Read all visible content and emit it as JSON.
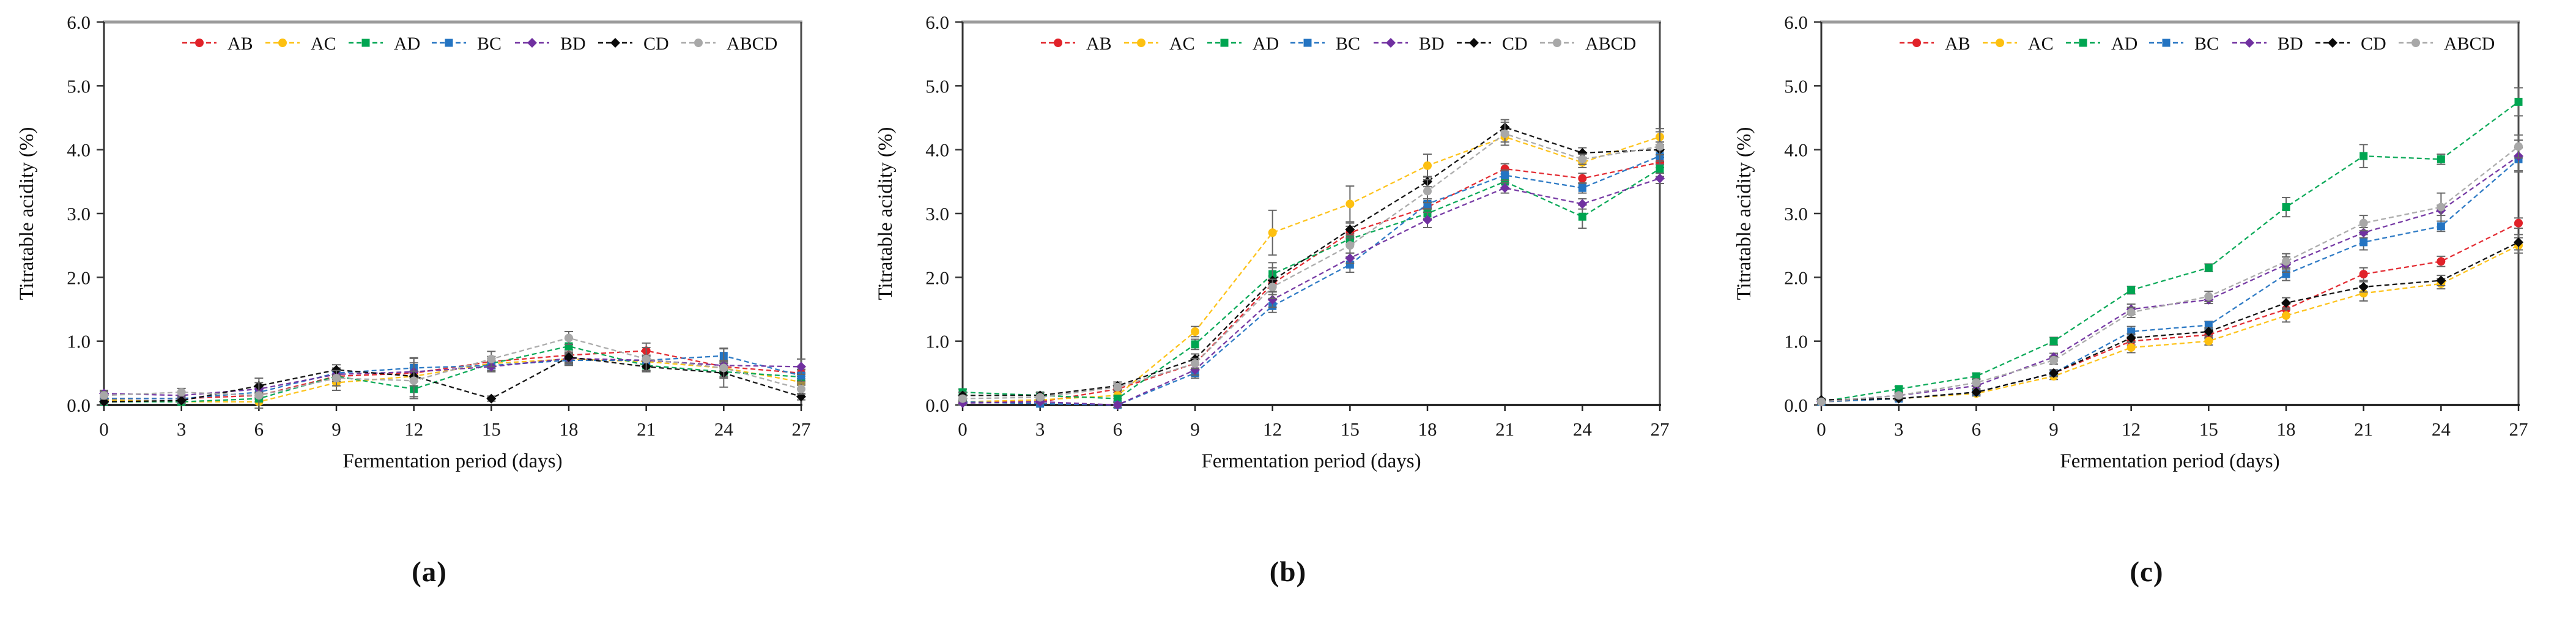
{
  "page": {
    "background": "#ffffff"
  },
  "axes": {
    "y_title": "Titratable acidity (%)",
    "x_title": "Fermentation period (days)",
    "y_tick_labels": [
      "0.0",
      "1.0",
      "2.0",
      "3.0",
      "4.0",
      "5.0",
      "6.0"
    ],
    "x_tick_labels": [
      "0",
      "3",
      "6",
      "9",
      "12",
      "15",
      "18",
      "21",
      "24",
      "27"
    ]
  },
  "legend": {
    "items": [
      "AB",
      "AC",
      "AD",
      "BC",
      "BD",
      "CD",
      "ABCD"
    ],
    "position": "top-inside"
  },
  "colors": {
    "AB": "#e12229",
    "AC": "#fdc010",
    "AD": "#00a551",
    "BC": "#2474c2",
    "BD": "#7030a0",
    "CD": "#0a0a0a",
    "ABCD": "#a8a8a8",
    "error_bar": "#666666",
    "axis": "#161616",
    "plot_border_top": "#9b9b9b",
    "plot_border_side": "#4a4a4a",
    "tick_text": "#1a1a1a"
  },
  "chart_data": [
    {
      "id": "a",
      "caption": "(a)",
      "type": "line",
      "grid": false,
      "xlabel": "Fermentation period (days)",
      "ylabel": "Titratable acidity (%)",
      "x": [
        0,
        3,
        6,
        9,
        12,
        15,
        18,
        21,
        24,
        27
      ],
      "ylim": [
        0,
        6
      ],
      "series": [
        {
          "name": "AB",
          "color": "#e12229",
          "marker": "circle",
          "values": [
            0.1,
            0.1,
            0.15,
            0.45,
            0.5,
            0.68,
            0.78,
            0.85,
            0.6,
            0.5
          ],
          "errors": [
            0.05,
            0.05,
            0.05,
            0.08,
            0.08,
            0.08,
            0.08,
            0.12,
            0.08,
            0.05
          ]
        },
        {
          "name": "AC",
          "color": "#fdc010",
          "marker": "circle",
          "values": [
            0.08,
            0.05,
            0.05,
            0.35,
            0.45,
            0.65,
            0.72,
            0.68,
            0.58,
            0.36
          ],
          "errors": [
            0.05,
            0.04,
            0.04,
            0.12,
            0.08,
            0.08,
            0.08,
            0.08,
            0.08,
            0.05
          ]
        },
        {
          "name": "AD",
          "color": "#00a551",
          "marker": "square",
          "values": [
            0.05,
            0.05,
            0.1,
            0.45,
            0.25,
            0.65,
            0.92,
            0.62,
            0.52,
            0.44
          ],
          "errors": [
            0.04,
            0.04,
            0.05,
            0.08,
            0.12,
            0.08,
            0.12,
            0.08,
            0.08,
            0.06
          ]
        },
        {
          "name": "BC",
          "color": "#2474c2",
          "marker": "square",
          "values": [
            0.1,
            0.1,
            0.2,
            0.5,
            0.58,
            0.62,
            0.7,
            0.7,
            0.77,
            0.46
          ],
          "errors": [
            0.05,
            0.05,
            0.08,
            0.08,
            0.15,
            0.08,
            0.08,
            0.08,
            0.12,
            0.1
          ]
        },
        {
          "name": "BD",
          "color": "#7030a0",
          "marker": "diamond",
          "values": [
            0.18,
            0.15,
            0.25,
            0.48,
            0.52,
            0.6,
            0.73,
            0.7,
            0.62,
            0.6
          ],
          "errors": [
            0.05,
            0.05,
            0.05,
            0.08,
            0.22,
            0.08,
            0.08,
            0.08,
            0.08,
            0.12
          ]
        },
        {
          "name": "CD",
          "color": "#0a0a0a",
          "marker": "diamond",
          "values": [
            0.05,
            0.07,
            0.3,
            0.55,
            0.45,
            0.1,
            0.75,
            0.6,
            0.5,
            0.13
          ],
          "errors": [
            0.04,
            0.04,
            0.12,
            0.08,
            0.08,
            0.04,
            0.08,
            0.08,
            0.08,
            0.05
          ]
        },
        {
          "name": "ABCD",
          "color": "#a8a8a8",
          "marker": "circle",
          "values": [
            0.15,
            0.2,
            0.15,
            0.42,
            0.38,
            0.72,
            1.05,
            0.72,
            0.58,
            0.25
          ],
          "errors": [
            0.06,
            0.06,
            0.2,
            0.12,
            0.28,
            0.12,
            0.1,
            0.18,
            0.3,
            0.08
          ]
        }
      ]
    },
    {
      "id": "b",
      "caption": "(b)",
      "type": "line",
      "grid": false,
      "xlabel": "Fermentation period (days)",
      "ylabel": "Titratable acidity (%)",
      "x": [
        0,
        3,
        6,
        9,
        12,
        15,
        18,
        21,
        24,
        27
      ],
      "ylim": [
        0,
        6
      ],
      "series": [
        {
          "name": "AB",
          "color": "#e12229",
          "marker": "circle",
          "values": [
            0.05,
            0.05,
            0.25,
            0.65,
            1.9,
            2.7,
            3.1,
            3.7,
            3.55,
            3.8
          ],
          "errors": [
            0.03,
            0.03,
            0.05,
            0.08,
            0.12,
            0.1,
            0.08,
            0.08,
            0.08,
            0.08
          ]
        },
        {
          "name": "AC",
          "color": "#fdc010",
          "marker": "circle",
          "values": [
            0.05,
            0.08,
            0.15,
            1.15,
            2.7,
            3.15,
            3.75,
            4.2,
            3.8,
            4.2
          ],
          "errors": [
            0.03,
            0.04,
            0.05,
            0.08,
            0.35,
            0.28,
            0.18,
            0.08,
            0.08,
            0.08
          ]
        },
        {
          "name": "AD",
          "color": "#00a551",
          "marker": "square",
          "values": [
            0.2,
            0.15,
            0.1,
            0.95,
            2.05,
            2.6,
            3.0,
            3.5,
            2.95,
            3.7
          ],
          "errors": [
            0.05,
            0.04,
            0.04,
            0.08,
            0.1,
            0.08,
            0.08,
            0.12,
            0.18,
            0.12
          ]
        },
        {
          "name": "BC",
          "color": "#2474c2",
          "marker": "square",
          "values": [
            0.05,
            0.02,
            0.0,
            0.5,
            1.55,
            2.2,
            3.15,
            3.6,
            3.4,
            3.9
          ],
          "errors": [
            0.03,
            0.03,
            0.04,
            0.08,
            0.1,
            0.12,
            0.08,
            0.08,
            0.08,
            0.08
          ]
        },
        {
          "name": "BD",
          "color": "#7030a0",
          "marker": "diamond",
          "values": [
            0.03,
            0.05,
            0.0,
            0.55,
            1.65,
            2.3,
            2.9,
            3.4,
            3.15,
            3.55
          ],
          "errors": [
            0.03,
            0.03,
            0.04,
            0.08,
            0.12,
            0.08,
            0.12,
            0.08,
            0.08,
            0.08
          ]
        },
        {
          "name": "CD",
          "color": "#0a0a0a",
          "marker": "diamond",
          "values": [
            0.15,
            0.15,
            0.3,
            0.72,
            1.95,
            2.75,
            3.5,
            4.35,
            3.95,
            4.0
          ],
          "errors": [
            0.05,
            0.05,
            0.06,
            0.08,
            0.28,
            0.1,
            0.08,
            0.12,
            0.08,
            0.08
          ]
        },
        {
          "name": "ABCD",
          "color": "#a8a8a8",
          "marker": "circle",
          "values": [
            0.1,
            0.12,
            0.28,
            0.65,
            1.85,
            2.5,
            3.35,
            4.25,
            3.85,
            4.05
          ],
          "errors": [
            0.04,
            0.04,
            0.05,
            0.08,
            0.12,
            0.12,
            0.18,
            0.18,
            0.08,
            0.28
          ]
        }
      ]
    },
    {
      "id": "c",
      "caption": "(c)",
      "type": "line",
      "grid": false,
      "xlabel": "Fermentation period (days)",
      "ylabel": "Titratable acidity (%)",
      "x": [
        0,
        3,
        6,
        9,
        12,
        15,
        18,
        21,
        24,
        27
      ],
      "ylim": [
        0,
        6
      ],
      "series": [
        {
          "name": "AB",
          "color": "#e12229",
          "marker": "circle",
          "values": [
            0.05,
            0.1,
            0.2,
            0.5,
            1.0,
            1.1,
            1.5,
            2.05,
            2.25,
            2.85
          ],
          "errors": [
            0.02,
            0.03,
            0.04,
            0.05,
            0.06,
            0.06,
            0.08,
            0.1,
            0.08,
            0.08
          ]
        },
        {
          "name": "AC",
          "color": "#fdc010",
          "marker": "circle",
          "values": [
            0.05,
            0.1,
            0.18,
            0.45,
            0.9,
            1.0,
            1.4,
            1.75,
            1.9,
            2.5
          ],
          "errors": [
            0.02,
            0.03,
            0.04,
            0.05,
            0.08,
            0.06,
            0.1,
            0.12,
            0.08,
            0.12
          ]
        },
        {
          "name": "AD",
          "color": "#00a551",
          "marker": "square",
          "values": [
            0.05,
            0.25,
            0.45,
            1.0,
            1.8,
            2.15,
            3.1,
            3.9,
            3.85,
            4.75
          ],
          "errors": [
            0.02,
            0.04,
            0.05,
            0.06,
            0.06,
            0.06,
            0.15,
            0.18,
            0.08,
            0.22
          ]
        },
        {
          "name": "BC",
          "color": "#2474c2",
          "marker": "square",
          "values": [
            0.05,
            0.1,
            0.2,
            0.5,
            1.15,
            1.25,
            2.05,
            2.55,
            2.8,
            3.85
          ],
          "errors": [
            0.02,
            0.03,
            0.04,
            0.05,
            0.08,
            0.06,
            0.1,
            0.12,
            0.08,
            0.18
          ]
        },
        {
          "name": "BD",
          "color": "#7030a0",
          "marker": "diamond",
          "values": [
            0.05,
            0.15,
            0.3,
            0.75,
            1.5,
            1.65,
            2.2,
            2.7,
            3.05,
            3.9
          ],
          "errors": [
            0.02,
            0.03,
            0.04,
            0.06,
            0.08,
            0.06,
            0.12,
            0.08,
            0.08,
            0.25
          ]
        },
        {
          "name": "CD",
          "color": "#0a0a0a",
          "marker": "diamond",
          "values": [
            0.08,
            0.1,
            0.2,
            0.5,
            1.05,
            1.15,
            1.6,
            1.85,
            1.95,
            2.55
          ],
          "errors": [
            0.02,
            0.03,
            0.04,
            0.05,
            0.06,
            0.06,
            0.08,
            0.08,
            0.08,
            0.12
          ]
        },
        {
          "name": "ABCD",
          "color": "#a8a8a8",
          "marker": "circle",
          "values": [
            0.05,
            0.15,
            0.35,
            0.7,
            1.45,
            1.7,
            2.25,
            2.85,
            3.1,
            4.05
          ],
          "errors": [
            0.03,
            0.04,
            0.06,
            0.06,
            0.08,
            0.08,
            0.12,
            0.12,
            0.22,
            0.18
          ]
        }
      ]
    }
  ]
}
